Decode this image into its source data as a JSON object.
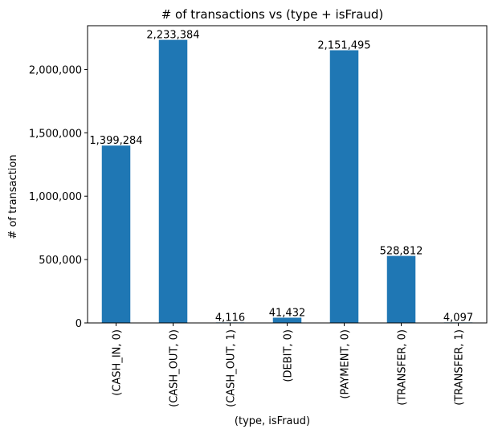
{
  "chart_data": {
    "type": "bar",
    "title": "# of transactions vs (type + isFraud)",
    "xlabel": "(type, isFraud)",
    "ylabel": "# of transaction",
    "categories": [
      "(CASH_IN, 0)",
      "(CASH_OUT, 0)",
      "(CASH_OUT, 1)",
      "(DEBIT, 0)",
      "(PAYMENT, 0)",
      "(TRANSFER, 0)",
      "(TRANSFER, 1)"
    ],
    "values": [
      1399284,
      2233384,
      4116,
      41432,
      2151495,
      528812,
      4097
    ],
    "data_labels": [
      "1,399,284",
      "2,233,384",
      "4,116",
      "41,432",
      "2,151,495",
      "528,812",
      "4,097"
    ],
    "ylim": [
      0,
      2345053
    ],
    "yticks": [
      0,
      500000,
      1000000,
      1500000,
      2000000
    ],
    "ytick_labels": [
      "0",
      "500,000",
      "1,000,000",
      "1,500,000",
      "2,000,000"
    ],
    "bar_color": "#1f77b4",
    "grid": false,
    "legend": false
  }
}
